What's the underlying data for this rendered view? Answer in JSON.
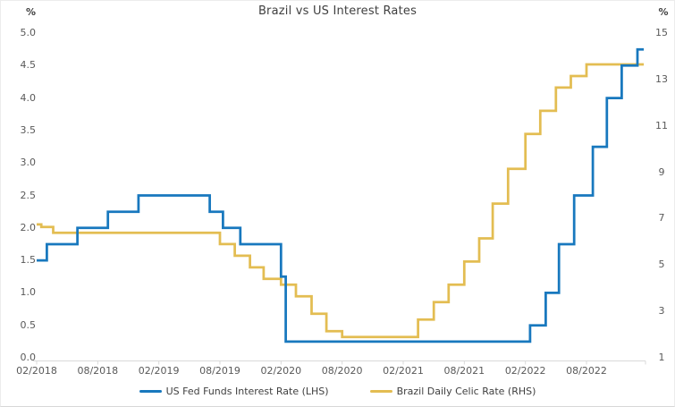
{
  "chart_data": {
    "type": "line",
    "step": true,
    "title": "Brazil vs US Interest Rates",
    "grid": false,
    "legend_position": "bottom",
    "axis_line_color": "#d9d9d9",
    "x_domain": [
      "2018-02",
      "2023-01-20"
    ],
    "x_ticks": [
      "02/2018",
      "08/2018",
      "02/2019",
      "08/2019",
      "02/2020",
      "08/2020",
      "02/2021",
      "08/2021",
      "02/2022",
      "08/2022"
    ],
    "left_axis": {
      "unit": "%",
      "min": 0,
      "max": 5,
      "ticks": [
        "5.0",
        "4.5",
        "4.0",
        "3.5",
        "3.0",
        "2.5",
        "2.0",
        "1.5",
        "1.0",
        "0.5",
        "0.0"
      ]
    },
    "right_axis": {
      "unit": "%",
      "min": 1,
      "max": 15,
      "ticks": [
        "15",
        "13",
        "11",
        "9",
        "7",
        "5",
        "3",
        "1"
      ]
    },
    "series": [
      {
        "name": "US Fed Funds Interest Rate (LHS)",
        "axis": "left",
        "color": "#1878be",
        "points": [
          [
            "2018-02",
            1.5
          ],
          [
            "2018-03",
            1.75
          ],
          [
            "2018-06",
            2.0
          ],
          [
            "2018-09",
            2.25
          ],
          [
            "2018-12",
            2.5
          ],
          [
            "2019-07",
            2.25
          ],
          [
            "2019-08-10",
            2.0
          ],
          [
            "2019-10",
            1.75
          ],
          [
            "2020-02",
            1.25
          ],
          [
            "2020-02-15",
            0.25
          ],
          [
            "2022-02-15",
            0.5
          ],
          [
            "2022-04",
            1.0
          ],
          [
            "2022-05-10",
            1.75
          ],
          [
            "2022-06-25",
            2.5
          ],
          [
            "2022-08-20",
            3.25
          ],
          [
            "2022-10",
            4.0
          ],
          [
            "2022-11-15",
            4.5
          ],
          [
            "2023-01",
            4.75
          ]
        ]
      },
      {
        "name": "Brazil Daily Celic Rate (RHS)",
        "axis": "right",
        "color": "#e3bd52",
        "points": [
          [
            "2018-02",
            6.75
          ],
          [
            "2018-02-15",
            6.64
          ],
          [
            "2018-03-20",
            6.39
          ],
          [
            "2019-08",
            5.9
          ],
          [
            "2019-09-15",
            5.4
          ],
          [
            "2019-10-30",
            4.9
          ],
          [
            "2019-12-10",
            4.4
          ],
          [
            "2020-02",
            4.15
          ],
          [
            "2020-03-15",
            3.65
          ],
          [
            "2020-05",
            2.9
          ],
          [
            "2020-06-15",
            2.15
          ],
          [
            "2020-08",
            1.9
          ],
          [
            "2021-03-15",
            2.65
          ],
          [
            "2021-05",
            3.4
          ],
          [
            "2021-06-15",
            4.15
          ],
          [
            "2021-08",
            5.15
          ],
          [
            "2021-09-15",
            6.15
          ],
          [
            "2021-10-25",
            7.65
          ],
          [
            "2021-12-10",
            9.15
          ],
          [
            "2022-02",
            10.65
          ],
          [
            "2022-03-15",
            11.65
          ],
          [
            "2022-05",
            12.65
          ],
          [
            "2022-06-15",
            13.15
          ],
          [
            "2022-08",
            13.65
          ]
        ]
      }
    ]
  }
}
